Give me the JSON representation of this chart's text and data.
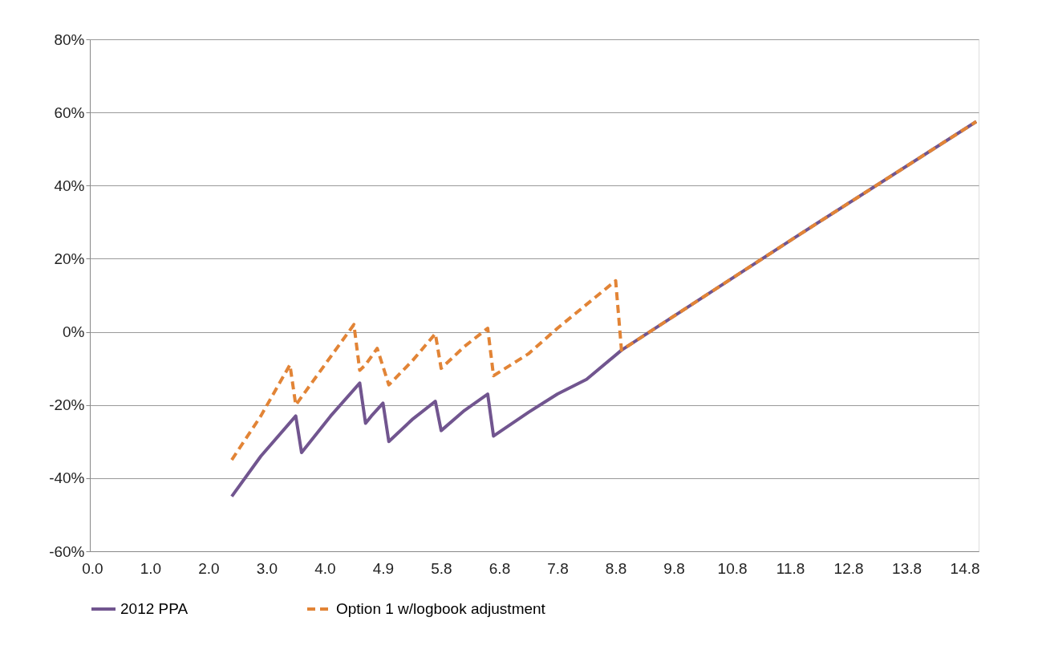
{
  "chart_data": {
    "type": "line",
    "categories": [
      "0.0",
      null,
      null,
      null,
      null,
      null,
      null,
      null,
      null,
      null,
      "1.0",
      null,
      null,
      null,
      null,
      null,
      null,
      null,
      null,
      null,
      "2.0",
      null,
      null,
      null,
      null,
      null,
      null,
      null,
      null,
      null,
      "3.0",
      null,
      null,
      null,
      null,
      null,
      null,
      null,
      null,
      null,
      "4.0",
      null,
      null,
      null,
      null,
      null,
      null,
      null,
      null,
      null,
      "4.9",
      null,
      null,
      null,
      null,
      null,
      null,
      null,
      null,
      null,
      "5.8",
      null,
      null,
      null,
      null,
      null,
      null,
      null,
      null,
      null,
      "6.8",
      null,
      null,
      null,
      null,
      null,
      null,
      null,
      null,
      null,
      "7.8",
      null,
      null,
      null,
      null,
      null,
      null,
      null,
      null,
      null,
      "8.8",
      null,
      null,
      null,
      null,
      null,
      null,
      null,
      null,
      null,
      "9.8",
      null,
      null,
      null,
      null,
      null,
      null,
      null,
      null,
      null,
      "10.8",
      null,
      null,
      null,
      null,
      null,
      null,
      null,
      null,
      null,
      "11.8",
      null,
      null,
      null,
      null,
      null,
      null,
      null,
      null,
      null,
      "12.8",
      null,
      null,
      null,
      null,
      null,
      null,
      null,
      null,
      null,
      "13.8",
      null,
      null,
      null,
      null,
      null,
      null,
      null,
      null,
      null,
      "14.8",
      null,
      null
    ],
    "series": [
      {
        "name": "2012 PPA",
        "color": "#71558f",
        "line_style": "solid",
        "values": [
          null,
          null,
          null,
          null,
          null,
          null,
          null,
          null,
          null,
          null,
          null,
          null,
          null,
          null,
          null,
          null,
          null,
          null,
          null,
          null,
          null,
          null,
          null,
          null,
          -45,
          null,
          null,
          null,
          null,
          -34,
          null,
          null,
          null,
          null,
          null,
          -23,
          -33,
          null,
          null,
          null,
          null,
          -23,
          null,
          null,
          null,
          null,
          -14,
          -25,
          -23,
          null,
          -19.5,
          -30,
          null,
          null,
          null,
          -24,
          null,
          null,
          null,
          -19,
          -27,
          null,
          null,
          null,
          -21.5,
          null,
          null,
          null,
          -17,
          -28.5,
          null,
          null,
          null,
          null,
          null,
          -22,
          null,
          null,
          null,
          null,
          -17,
          null,
          null,
          null,
          null,
          -13,
          null,
          null,
          null,
          null,
          null,
          -5,
          null,
          null,
          null,
          null,
          null,
          null,
          null,
          null,
          null,
          null,
          null,
          null,
          null,
          null,
          null,
          null,
          null,
          null,
          null,
          null,
          null,
          null,
          null,
          null,
          null,
          null,
          null,
          null,
          null,
          26,
          null,
          null,
          null,
          null,
          null,
          null,
          null,
          null,
          null,
          null,
          null,
          null,
          null,
          null,
          null,
          null,
          null,
          null,
          null,
          null,
          null,
          null,
          null,
          null,
          null,
          null,
          null,
          null,
          null,
          null,
          57.5
        ]
      },
      {
        "name": "Option 1 w/logbook adjustment",
        "color": "#e28436",
        "line_style": "dashed",
        "values": [
          null,
          null,
          null,
          null,
          null,
          null,
          null,
          null,
          null,
          null,
          null,
          null,
          null,
          null,
          null,
          null,
          null,
          null,
          null,
          null,
          null,
          null,
          null,
          null,
          -35,
          null,
          null,
          null,
          null,
          -23,
          null,
          null,
          null,
          null,
          -9,
          -20,
          null,
          null,
          null,
          null,
          -9,
          null,
          null,
          null,
          null,
          2,
          -10.5,
          -9,
          null,
          -4.5,
          null,
          -14.5,
          null,
          null,
          null,
          -8,
          null,
          null,
          null,
          -0.5,
          -10,
          null,
          null,
          null,
          -4,
          null,
          null,
          null,
          1,
          -12,
          null,
          null,
          null,
          null,
          null,
          -6,
          null,
          null,
          null,
          null,
          1,
          null,
          null,
          null,
          null,
          null,
          null,
          null,
          null,
          null,
          14,
          -5,
          null,
          null,
          null,
          null,
          null,
          null,
          null,
          null,
          null,
          null,
          null,
          null,
          null,
          null,
          null,
          null,
          null,
          null,
          null,
          null,
          null,
          null,
          null,
          null,
          null,
          null,
          null,
          null,
          null,
          26,
          null,
          null,
          null,
          null,
          null,
          null,
          null,
          null,
          null,
          null,
          null,
          null,
          null,
          null,
          null,
          null,
          null,
          null,
          null,
          null,
          null,
          null,
          null,
          null,
          null,
          null,
          null,
          null,
          null,
          null,
          57.5
        ]
      }
    ],
    "ylim": [
      -60,
      80
    ],
    "yticks": [
      {
        "value": -60,
        "label": "-60%"
      },
      {
        "value": -40,
        "label": "-40%"
      },
      {
        "value": -20,
        "label": "-20%"
      },
      {
        "value": 0,
        "label": "0%"
      },
      {
        "value": 20,
        "label": "20%"
      },
      {
        "value": 40,
        "label": "40%"
      },
      {
        "value": 60,
        "label": "60%"
      },
      {
        "value": 80,
        "label": "80%"
      }
    ],
    "grid": "y",
    "legend": "bottom",
    "marker": "none"
  }
}
